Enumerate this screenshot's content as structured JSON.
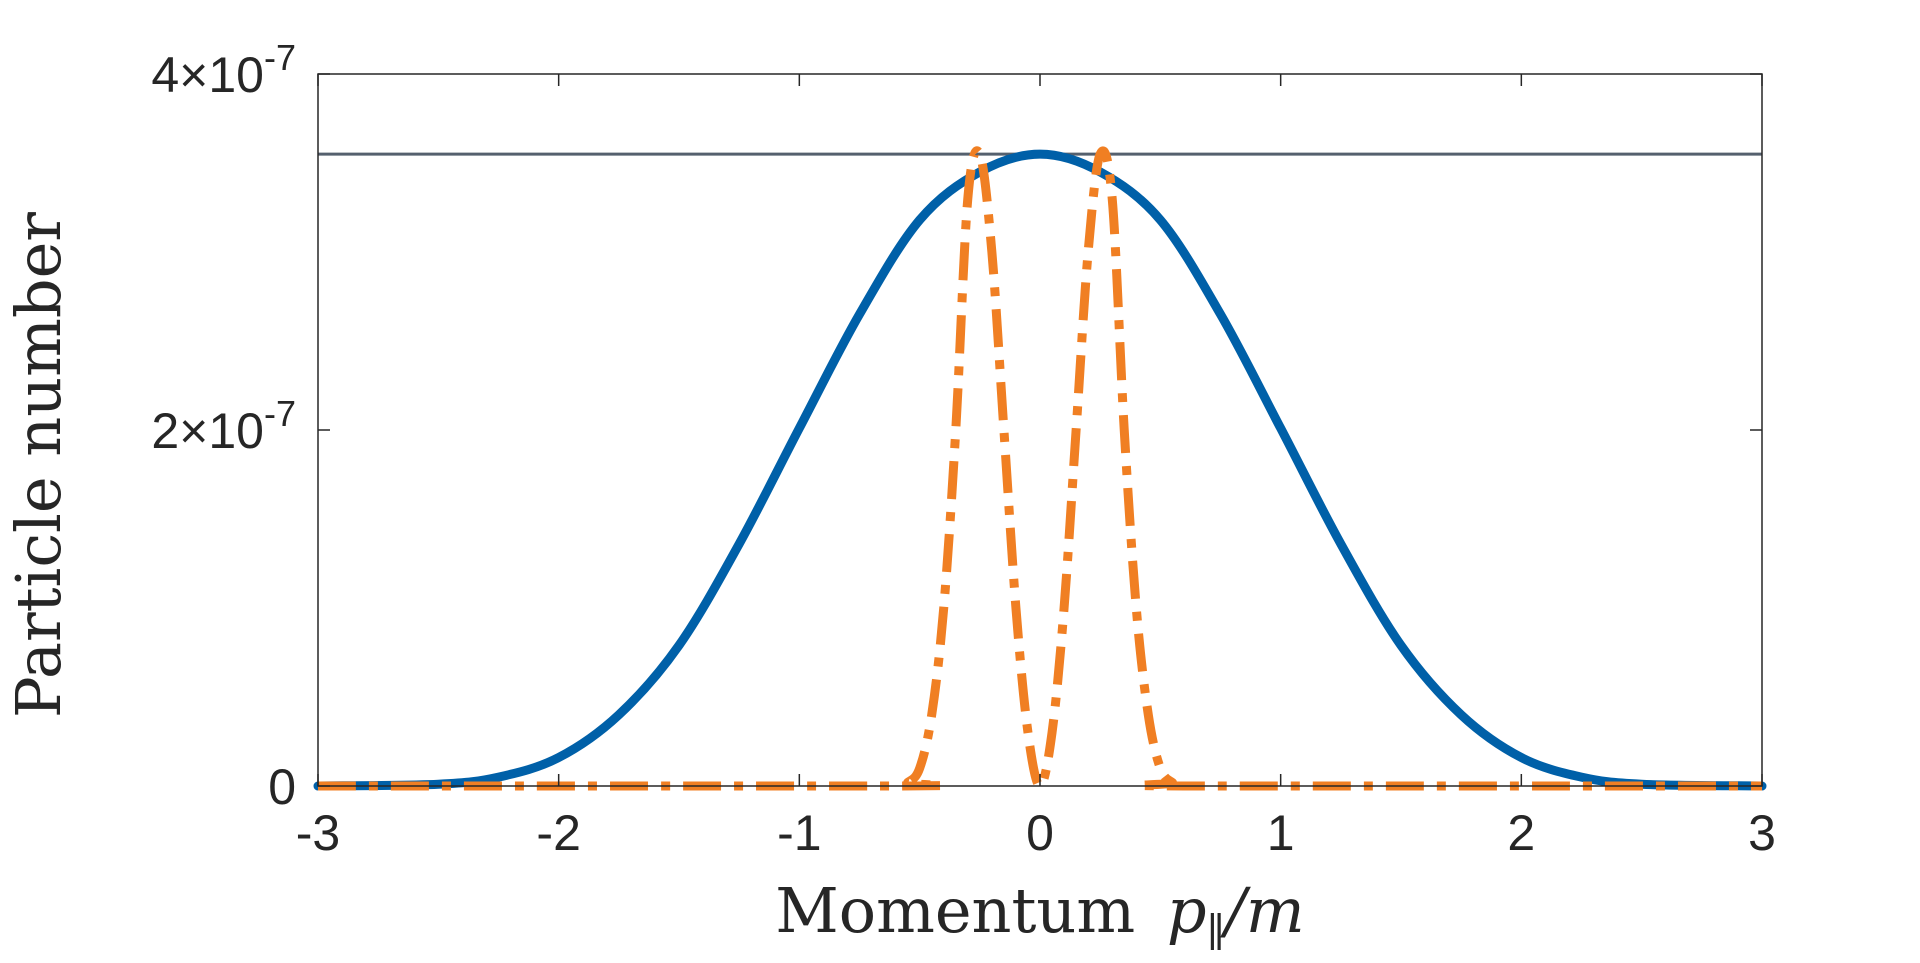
{
  "chart_data": {
    "type": "line",
    "xlabel": {
      "text": "Momentum ",
      "var": "p",
      "sub": "∥",
      "rest": "/m"
    },
    "ylabel": "Particle number",
    "xlim": [
      -3,
      3
    ],
    "ylim": [
      0,
      4e-07
    ],
    "xticks": [
      {
        "value": -3,
        "label": "-3"
      },
      {
        "value": -2,
        "label": "-2"
      },
      {
        "value": -1,
        "label": "-1"
      },
      {
        "value": 0,
        "label": "0"
      },
      {
        "value": 1,
        "label": "1"
      },
      {
        "value": 2,
        "label": "2"
      },
      {
        "value": 3,
        "label": "3"
      }
    ],
    "yticks": [
      {
        "value": 0,
        "mant": "0",
        "exp": ""
      },
      {
        "value": 2e-07,
        "mant": "2×10",
        "exp": "-7"
      },
      {
        "value": 4e-07,
        "mant": "4×10",
        "exp": "-7"
      }
    ],
    "grid": false,
    "reference_line": {
      "y": 3.55e-07,
      "color": "#55606e"
    },
    "series": [
      {
        "style": "solid",
        "color": "#0060A8",
        "x": [
          -3.0,
          -2.5,
          -2.25,
          -2.0,
          -1.75,
          -1.5,
          -1.25,
          -1.0,
          -0.75,
          -0.5,
          -0.25,
          0.0,
          0.25,
          0.5,
          0.75,
          1.0,
          1.25,
          1.5,
          1.75,
          2.0,
          2.25,
          2.5,
          3.0
        ],
        "y": [
          0.0,
          1e-09,
          5e-09,
          1.6e-08,
          4e-08,
          7.9e-08,
          1.36e-07,
          2.01e-07,
          2.65e-07,
          3.18e-07,
          3.45e-07,
          3.55e-07,
          3.45e-07,
          3.18e-07,
          2.65e-07,
          2.01e-07,
          1.36e-07,
          7.9e-08,
          4e-08,
          1.6e-08,
          5e-09,
          1e-09,
          0.0
        ]
      },
      {
        "style": "dash-dot",
        "color": "#F07F23",
        "x": [
          -3.0,
          -0.6,
          -0.55,
          -0.5,
          -0.45,
          -0.4,
          -0.35,
          -0.3,
          -0.25,
          -0.2,
          -0.15,
          -0.1,
          -0.05,
          0.0,
          0.05,
          0.1,
          0.15,
          0.2,
          0.25,
          0.3,
          0.35,
          0.4,
          0.45,
          0.5,
          0.55,
          0.6,
          3.0
        ],
        "y": [
          0.0,
          0.0,
          2e-09,
          1e-08,
          4e-08,
          1e-07,
          2e-07,
          3.3e-07,
          3.55e-07,
          3e-07,
          2e-07,
          1e-07,
          3e-08,
          0.0,
          3e-08,
          1e-07,
          2e-07,
          3e-07,
          3.55e-07,
          3.3e-07,
          2e-07,
          1e-07,
          4e-08,
          1e-08,
          2e-09,
          0.0,
          0.0
        ]
      }
    ]
  }
}
